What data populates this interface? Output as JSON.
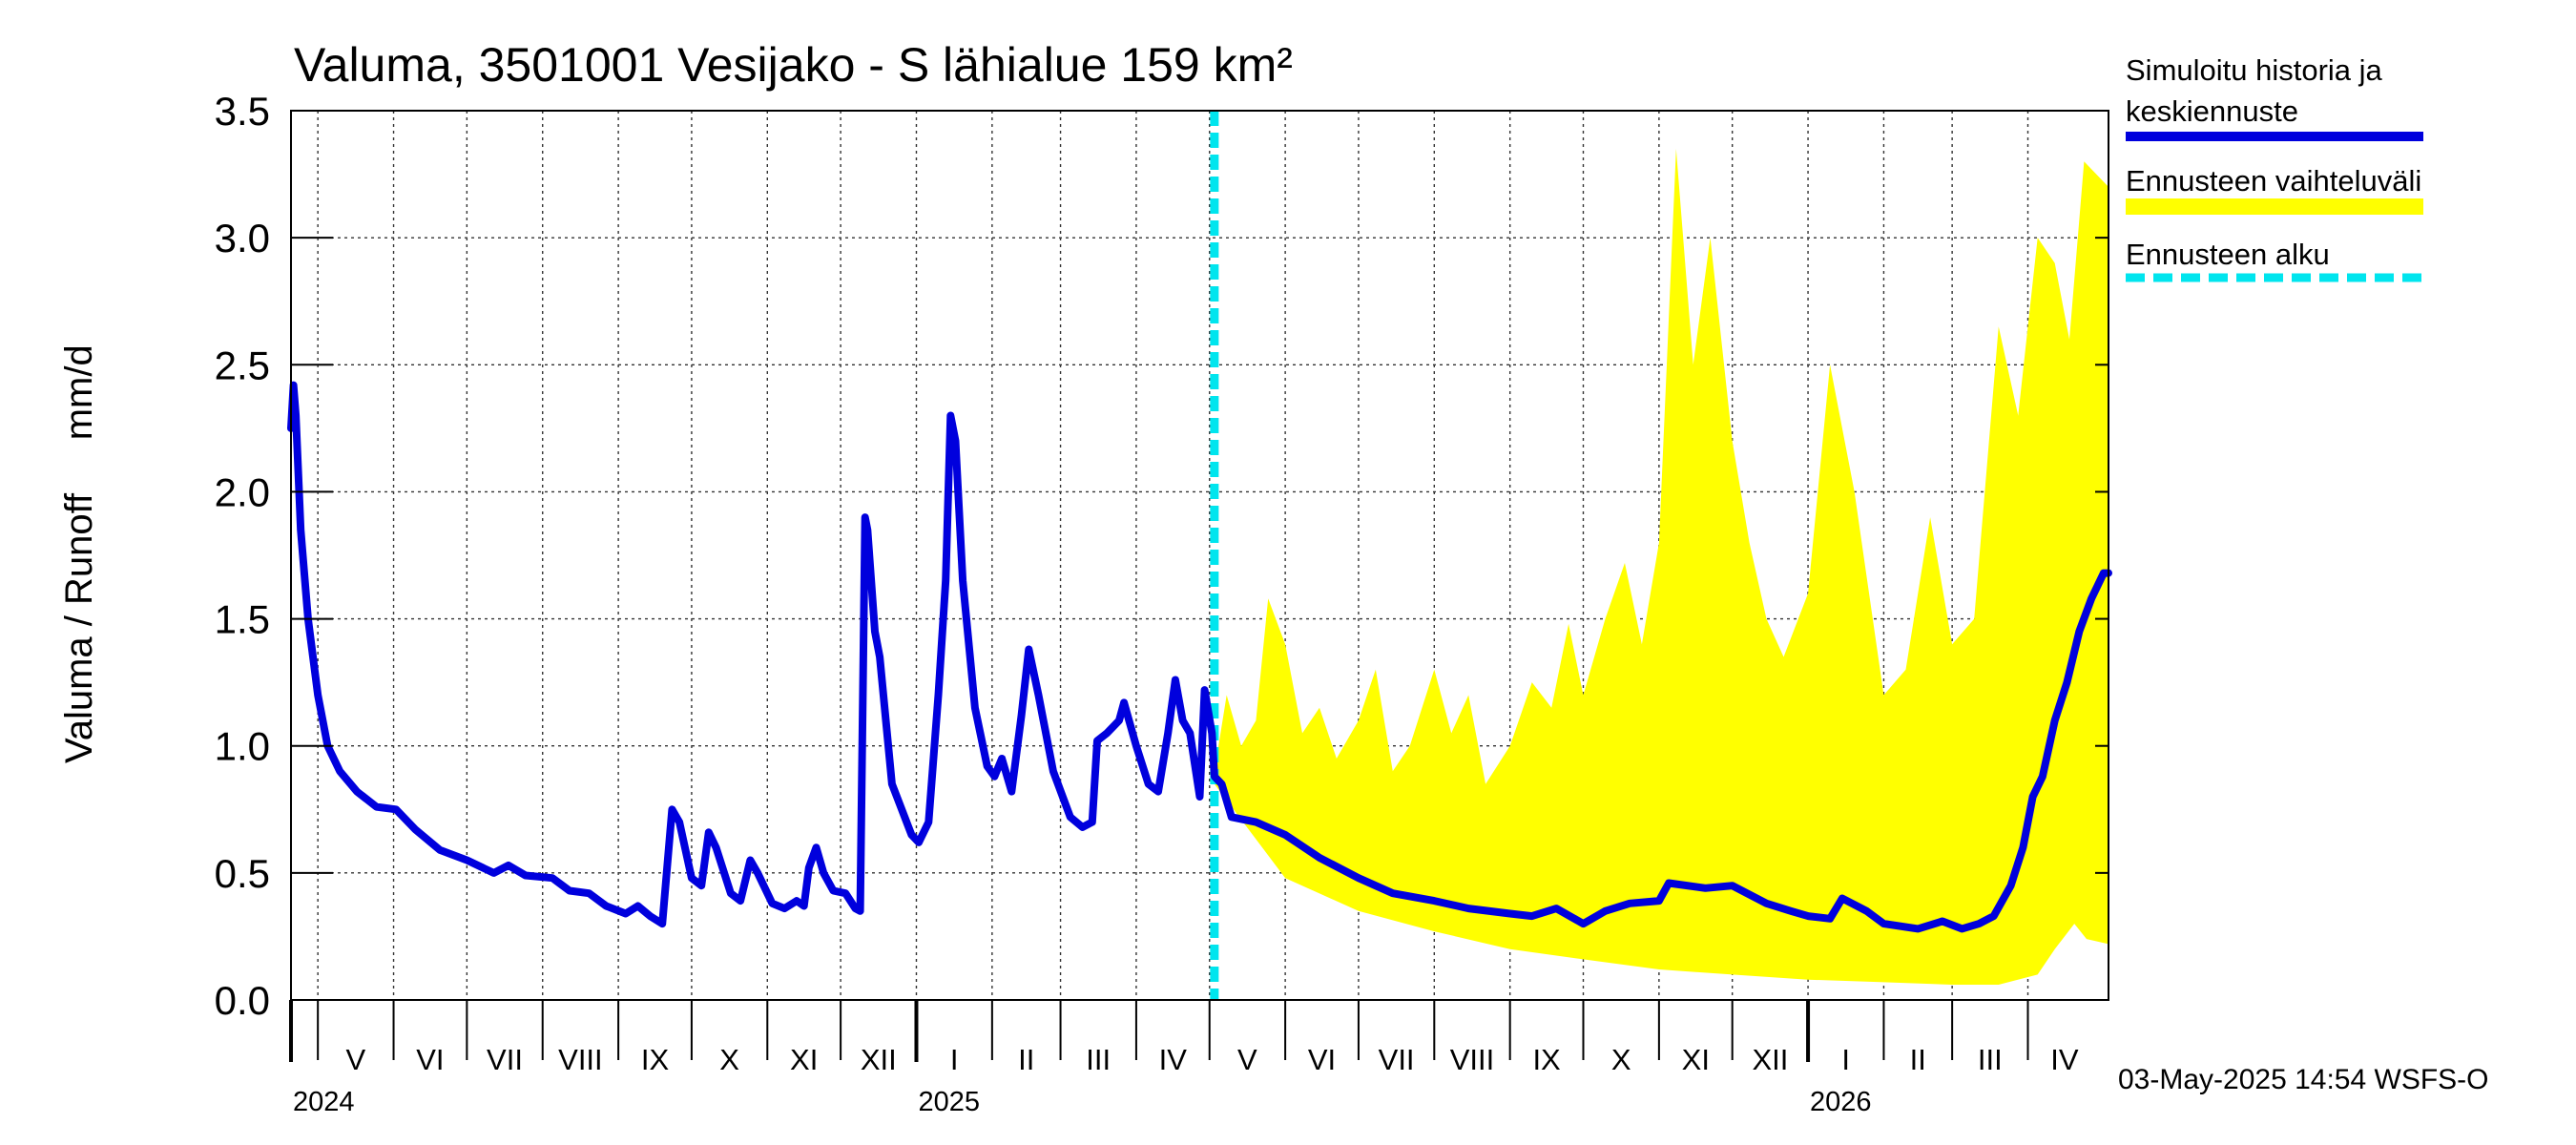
{
  "chart_data": {
    "type": "line",
    "title": "Valuma, 3501001 Vesijako - S lähialue 159 km²",
    "ylabel": "Valuma / Runoff     mm/d",
    "ylim": [
      0,
      3.5
    ],
    "yticks": [
      0.0,
      0.5,
      1.0,
      1.5,
      2.0,
      2.5,
      3.0,
      3.5
    ],
    "ytick_labels": [
      "0.0",
      "0.5",
      "1.0",
      "1.5",
      "2.0",
      "2.5",
      "3.0",
      "3.5"
    ],
    "xlim": [
      "2024-04-20",
      "2026-05-04"
    ],
    "grid": true,
    "months": [
      {
        "label": "V",
        "start": "2024-05-01",
        "end": "2024-06-01"
      },
      {
        "label": "VI",
        "start": "2024-06-01",
        "end": "2024-07-01"
      },
      {
        "label": "VII",
        "start": "2024-07-01",
        "end": "2024-08-01"
      },
      {
        "label": "VIII",
        "start": "2024-08-01",
        "end": "2024-09-01"
      },
      {
        "label": "IX",
        "start": "2024-09-01",
        "end": "2024-10-01"
      },
      {
        "label": "X",
        "start": "2024-10-01",
        "end": "2024-11-01"
      },
      {
        "label": "XI",
        "start": "2024-11-01",
        "end": "2024-12-01"
      },
      {
        "label": "XII",
        "start": "2024-12-01",
        "end": "2025-01-01"
      },
      {
        "label": "I",
        "start": "2025-01-01",
        "end": "2025-02-01"
      },
      {
        "label": "II",
        "start": "2025-02-01",
        "end": "2025-03-01"
      },
      {
        "label": "III",
        "start": "2025-03-01",
        "end": "2025-04-01"
      },
      {
        "label": "IV",
        "start": "2025-04-01",
        "end": "2025-05-01"
      },
      {
        "label": "V",
        "start": "2025-05-01",
        "end": "2025-06-01"
      },
      {
        "label": "VI",
        "start": "2025-06-01",
        "end": "2025-07-01"
      },
      {
        "label": "VII",
        "start": "2025-07-01",
        "end": "2025-08-01"
      },
      {
        "label": "VIII",
        "start": "2025-08-01",
        "end": "2025-09-01"
      },
      {
        "label": "IX",
        "start": "2025-09-01",
        "end": "2025-10-01"
      },
      {
        "label": "X",
        "start": "2025-10-01",
        "end": "2025-11-01"
      },
      {
        "label": "XI",
        "start": "2025-11-01",
        "end": "2025-12-01"
      },
      {
        "label": "XII",
        "start": "2025-12-01",
        "end": "2026-01-01"
      },
      {
        "label": "I",
        "start": "2026-01-01",
        "end": "2026-02-01"
      },
      {
        "label": "II",
        "start": "2026-02-01",
        "end": "2026-03-01"
      },
      {
        "label": "III",
        "start": "2026-03-01",
        "end": "2026-04-01"
      },
      {
        "label": "IV",
        "start": "2026-04-01",
        "end": "2026-05-01"
      }
    ],
    "years": [
      {
        "label": "2024",
        "date": "2024-04-20"
      },
      {
        "label": "2025",
        "date": "2025-01-01"
      },
      {
        "label": "2026",
        "date": "2026-01-01"
      }
    ],
    "forecast_start": "2025-05-03",
    "series": [
      {
        "name": "Simuloitu historia ja keskiennuste",
        "color": "#0000dd",
        "points": [
          [
            "2024-04-20",
            2.25
          ],
          [
            "2024-04-21",
            2.42
          ],
          [
            "2024-04-22",
            2.3
          ],
          [
            "2024-04-24",
            1.85
          ],
          [
            "2024-04-27",
            1.5
          ],
          [
            "2024-05-01",
            1.2
          ],
          [
            "2024-05-05",
            1.0
          ],
          [
            "2024-05-10",
            0.9
          ],
          [
            "2024-05-17",
            0.82
          ],
          [
            "2024-05-25",
            0.76
          ],
          [
            "2024-06-02",
            0.75
          ],
          [
            "2024-06-10",
            0.67
          ],
          [
            "2024-06-20",
            0.59
          ],
          [
            "2024-07-01",
            0.55
          ],
          [
            "2024-07-12",
            0.5
          ],
          [
            "2024-07-18",
            0.53
          ],
          [
            "2024-07-25",
            0.49
          ],
          [
            "2024-08-05",
            0.48
          ],
          [
            "2024-08-12",
            0.43
          ],
          [
            "2024-08-20",
            0.42
          ],
          [
            "2024-08-27",
            0.37
          ],
          [
            "2024-09-04",
            0.34
          ],
          [
            "2024-09-09",
            0.37
          ],
          [
            "2024-09-14",
            0.33
          ],
          [
            "2024-09-19",
            0.3
          ],
          [
            "2024-09-23",
            0.75
          ],
          [
            "2024-09-26",
            0.7
          ],
          [
            "2024-10-01",
            0.48
          ],
          [
            "2024-10-05",
            0.45
          ],
          [
            "2024-10-08",
            0.66
          ],
          [
            "2024-10-11",
            0.6
          ],
          [
            "2024-10-17",
            0.42
          ],
          [
            "2024-10-21",
            0.39
          ],
          [
            "2024-10-25",
            0.55
          ],
          [
            "2024-10-28",
            0.5
          ],
          [
            "2024-11-03",
            0.38
          ],
          [
            "2024-11-08",
            0.36
          ],
          [
            "2024-11-13",
            0.39
          ],
          [
            "2024-11-16",
            0.37
          ],
          [
            "2024-11-18",
            0.52
          ],
          [
            "2024-11-21",
            0.6
          ],
          [
            "2024-11-24",
            0.5
          ],
          [
            "2024-11-28",
            0.43
          ],
          [
            "2024-12-03",
            0.42
          ],
          [
            "2024-12-07",
            0.36
          ],
          [
            "2024-12-09",
            0.35
          ],
          [
            "2024-12-11",
            1.9
          ],
          [
            "2024-12-12",
            1.85
          ],
          [
            "2024-12-15",
            1.45
          ],
          [
            "2024-12-17",
            1.35
          ],
          [
            "2024-12-22",
            0.85
          ],
          [
            "2024-12-30",
            0.65
          ],
          [
            "2025-01-02",
            0.62
          ],
          [
            "2025-01-06",
            0.7
          ],
          [
            "2025-01-10",
            1.2
          ],
          [
            "2025-01-13",
            1.65
          ],
          [
            "2025-01-15",
            2.3
          ],
          [
            "2025-01-17",
            2.2
          ],
          [
            "2025-01-20",
            1.65
          ],
          [
            "2025-01-25",
            1.15
          ],
          [
            "2025-01-30",
            0.92
          ],
          [
            "2025-02-02",
            0.88
          ],
          [
            "2025-02-05",
            0.95
          ],
          [
            "2025-02-09",
            0.82
          ],
          [
            "2025-02-13",
            1.12
          ],
          [
            "2025-02-16",
            1.38
          ],
          [
            "2025-02-20",
            1.2
          ],
          [
            "2025-02-26",
            0.9
          ],
          [
            "2025-03-05",
            0.72
          ],
          [
            "2025-03-10",
            0.68
          ],
          [
            "2025-03-14",
            0.7
          ],
          [
            "2025-03-16",
            1.02
          ],
          [
            "2025-03-20",
            1.05
          ],
          [
            "2025-03-25",
            1.1
          ],
          [
            "2025-03-27",
            1.17
          ],
          [
            "2025-04-01",
            1.0
          ],
          [
            "2025-04-06",
            0.85
          ],
          [
            "2025-04-10",
            0.82
          ],
          [
            "2025-04-14",
            1.05
          ],
          [
            "2025-04-17",
            1.26
          ],
          [
            "2025-04-20",
            1.1
          ],
          [
            "2025-04-23",
            1.05
          ],
          [
            "2025-04-27",
            0.8
          ],
          [
            "2025-04-29",
            1.22
          ],
          [
            "2025-05-02",
            1.05
          ],
          [
            "2025-05-03",
            0.88
          ],
          [
            "2025-05-06",
            0.85
          ],
          [
            "2025-05-10",
            0.72
          ],
          [
            "2025-05-20",
            0.7
          ],
          [
            "2025-06-01",
            0.65
          ],
          [
            "2025-06-15",
            0.56
          ],
          [
            "2025-07-01",
            0.48
          ],
          [
            "2025-07-15",
            0.42
          ],
          [
            "2025-08-01",
            0.39
          ],
          [
            "2025-08-15",
            0.36
          ],
          [
            "2025-09-01",
            0.34
          ],
          [
            "2025-09-10",
            0.33
          ],
          [
            "2025-09-20",
            0.36
          ],
          [
            "2025-10-01",
            0.3
          ],
          [
            "2025-10-10",
            0.35
          ],
          [
            "2025-10-20",
            0.38
          ],
          [
            "2025-11-01",
            0.39
          ],
          [
            "2025-11-05",
            0.46
          ],
          [
            "2025-11-20",
            0.44
          ],
          [
            "2025-12-01",
            0.45
          ],
          [
            "2025-12-15",
            0.38
          ],
          [
            "2025-12-25",
            0.35
          ],
          [
            "2026-01-01",
            0.33
          ],
          [
            "2026-01-10",
            0.32
          ],
          [
            "2026-01-15",
            0.4
          ],
          [
            "2026-01-25",
            0.35
          ],
          [
            "2026-02-01",
            0.3
          ],
          [
            "2026-02-15",
            0.28
          ],
          [
            "2026-02-25",
            0.31
          ],
          [
            "2026-03-05",
            0.28
          ],
          [
            "2026-03-12",
            0.3
          ],
          [
            "2026-03-18",
            0.33
          ],
          [
            "2026-03-25",
            0.45
          ],
          [
            "2026-03-30",
            0.6
          ],
          [
            "2026-04-03",
            0.8
          ],
          [
            "2026-04-07",
            0.88
          ],
          [
            "2026-04-12",
            1.1
          ],
          [
            "2026-04-17",
            1.25
          ],
          [
            "2026-04-22",
            1.45
          ],
          [
            "2026-04-27",
            1.58
          ],
          [
            "2026-05-02",
            1.68
          ],
          [
            "2026-05-04",
            1.68
          ]
        ]
      }
    ],
    "band": {
      "name": "Ennusteen vaihteluväli",
      "color": "#ffff00",
      "upper": [
        [
          "2025-05-03",
          0.9
        ],
        [
          "2025-05-08",
          1.2
        ],
        [
          "2025-05-14",
          1.0
        ],
        [
          "2025-05-20",
          1.1
        ],
        [
          "2025-05-25",
          1.58
        ],
        [
          "2025-06-01",
          1.4
        ],
        [
          "2025-06-08",
          1.05
        ],
        [
          "2025-06-15",
          1.15
        ],
        [
          "2025-06-22",
          0.95
        ],
        [
          "2025-07-01",
          1.1
        ],
        [
          "2025-07-08",
          1.3
        ],
        [
          "2025-07-15",
          0.9
        ],
        [
          "2025-07-22",
          1.0
        ],
        [
          "2025-08-01",
          1.3
        ],
        [
          "2025-08-08",
          1.05
        ],
        [
          "2025-08-15",
          1.2
        ],
        [
          "2025-08-22",
          0.85
        ],
        [
          "2025-09-01",
          1.0
        ],
        [
          "2025-09-10",
          1.25
        ],
        [
          "2025-09-18",
          1.15
        ],
        [
          "2025-09-25",
          1.48
        ],
        [
          "2025-10-01",
          1.2
        ],
        [
          "2025-10-10",
          1.5
        ],
        [
          "2025-10-18",
          1.72
        ],
        [
          "2025-10-25",
          1.4
        ],
        [
          "2025-11-01",
          1.8
        ],
        [
          "2025-11-08",
          3.35
        ],
        [
          "2025-11-15",
          2.5
        ],
        [
          "2025-11-22",
          3.0
        ],
        [
          "2025-12-01",
          2.2
        ],
        [
          "2025-12-08",
          1.8
        ],
        [
          "2025-12-15",
          1.5
        ],
        [
          "2025-12-22",
          1.35
        ],
        [
          "2026-01-01",
          1.6
        ],
        [
          "2026-01-10",
          2.5
        ],
        [
          "2026-01-20",
          2.0
        ],
        [
          "2026-02-01",
          1.2
        ],
        [
          "2026-02-10",
          1.3
        ],
        [
          "2026-02-20",
          1.9
        ],
        [
          "2026-03-01",
          1.4
        ],
        [
          "2026-03-10",
          1.5
        ],
        [
          "2026-03-20",
          2.65
        ],
        [
          "2026-03-28",
          2.3
        ],
        [
          "2026-04-05",
          3.0
        ],
        [
          "2026-04-12",
          2.9
        ],
        [
          "2026-04-18",
          2.6
        ],
        [
          "2026-04-24",
          3.3
        ],
        [
          "2026-05-04",
          3.2
        ]
      ],
      "lower": [
        [
          "2025-05-03",
          0.85
        ],
        [
          "2025-06-01",
          0.48
        ],
        [
          "2025-07-01",
          0.35
        ],
        [
          "2025-08-01",
          0.27
        ],
        [
          "2025-09-01",
          0.2
        ],
        [
          "2025-10-01",
          0.16
        ],
        [
          "2025-11-01",
          0.12
        ],
        [
          "2025-12-01",
          0.1
        ],
        [
          "2026-01-01",
          0.08
        ],
        [
          "2026-02-01",
          0.07
        ],
        [
          "2026-03-01",
          0.06
        ],
        [
          "2026-03-20",
          0.06
        ],
        [
          "2026-04-05",
          0.1
        ],
        [
          "2026-04-12",
          0.2
        ],
        [
          "2026-04-20",
          0.3
        ],
        [
          "2026-04-25",
          0.24
        ],
        [
          "2026-05-04",
          0.22
        ]
      ]
    },
    "marker": {
      "name": "Ennusteen alku",
      "color": "#00e5ee"
    }
  },
  "legend": {
    "items": [
      {
        "line1": "Simuloitu historia ja",
        "line2": "keskiennuste"
      },
      {
        "line1": "Ennusteen vaihteluväli",
        "line2": ""
      },
      {
        "line1": "Ennusteen alku",
        "line2": ""
      }
    ]
  },
  "footer": "03-May-2025 14:54 WSFS-O"
}
